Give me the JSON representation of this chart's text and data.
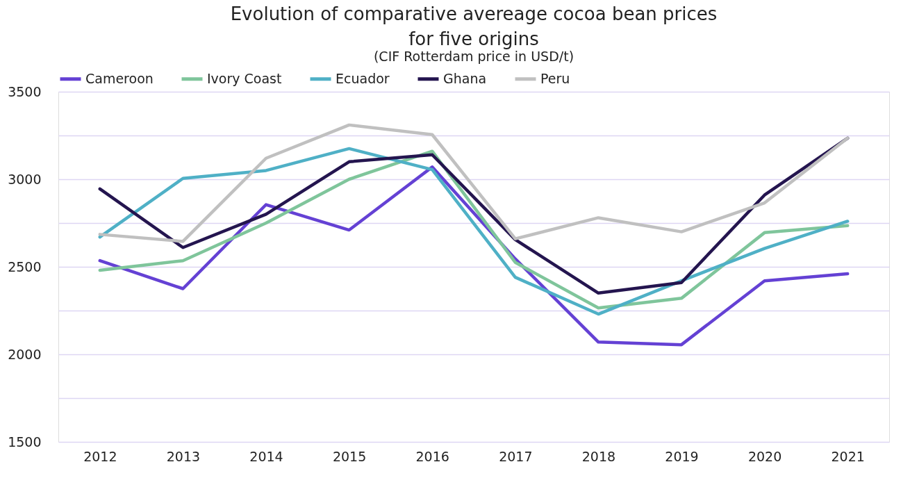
{
  "chart_data": {
    "type": "line",
    "title": "Evolution of comparative avereage cocoa bean prices\nfor five origins",
    "subtitle": "(CIF Rotterdam price in USD/t)",
    "categories": [
      "2012",
      "2013",
      "2014",
      "2015",
      "2016",
      "2017",
      "2018",
      "2019",
      "2020",
      "2021"
    ],
    "series": [
      {
        "name": "Cameroon",
        "color": "#6441d4",
        "values": [
          2535,
          2375,
          2855,
          2710,
          3070,
          2545,
          2070,
          2055,
          2420,
          2460
        ]
      },
      {
        "name": "Ivory Coast",
        "color": "#7fc59b",
        "values": [
          2480,
          2535,
          2750,
          3000,
          3160,
          2525,
          2265,
          2320,
          2695,
          2735
        ]
      },
      {
        "name": "Ecuador",
        "color": "#4fb0c6",
        "values": [
          2670,
          3005,
          3050,
          3175,
          3055,
          2440,
          2230,
          2420,
          2605,
          2760
        ]
      },
      {
        "name": "Ghana",
        "color": "#24154f",
        "values": [
          2945,
          2610,
          2800,
          3100,
          3140,
          2655,
          2350,
          2410,
          2910,
          3235
        ]
      },
      {
        "name": "Peru",
        "color": "#c0c0c0",
        "values": [
          2685,
          2645,
          3120,
          3310,
          3255,
          2660,
          2780,
          2700,
          2865,
          3235
        ]
      }
    ],
    "ylim": [
      1500,
      3500
    ],
    "yticks": [
      1500,
      {
        "value": 1750,
        "label": null
      },
      2000,
      {
        "value": 2250,
        "label": null
      },
      2500,
      {
        "value": 2750,
        "label": null
      },
      3000,
      {
        "value": 3250,
        "label": null
      },
      3500
    ],
    "grid": "y",
    "legend": "top",
    "line_style": "solid",
    "marker": "none"
  }
}
